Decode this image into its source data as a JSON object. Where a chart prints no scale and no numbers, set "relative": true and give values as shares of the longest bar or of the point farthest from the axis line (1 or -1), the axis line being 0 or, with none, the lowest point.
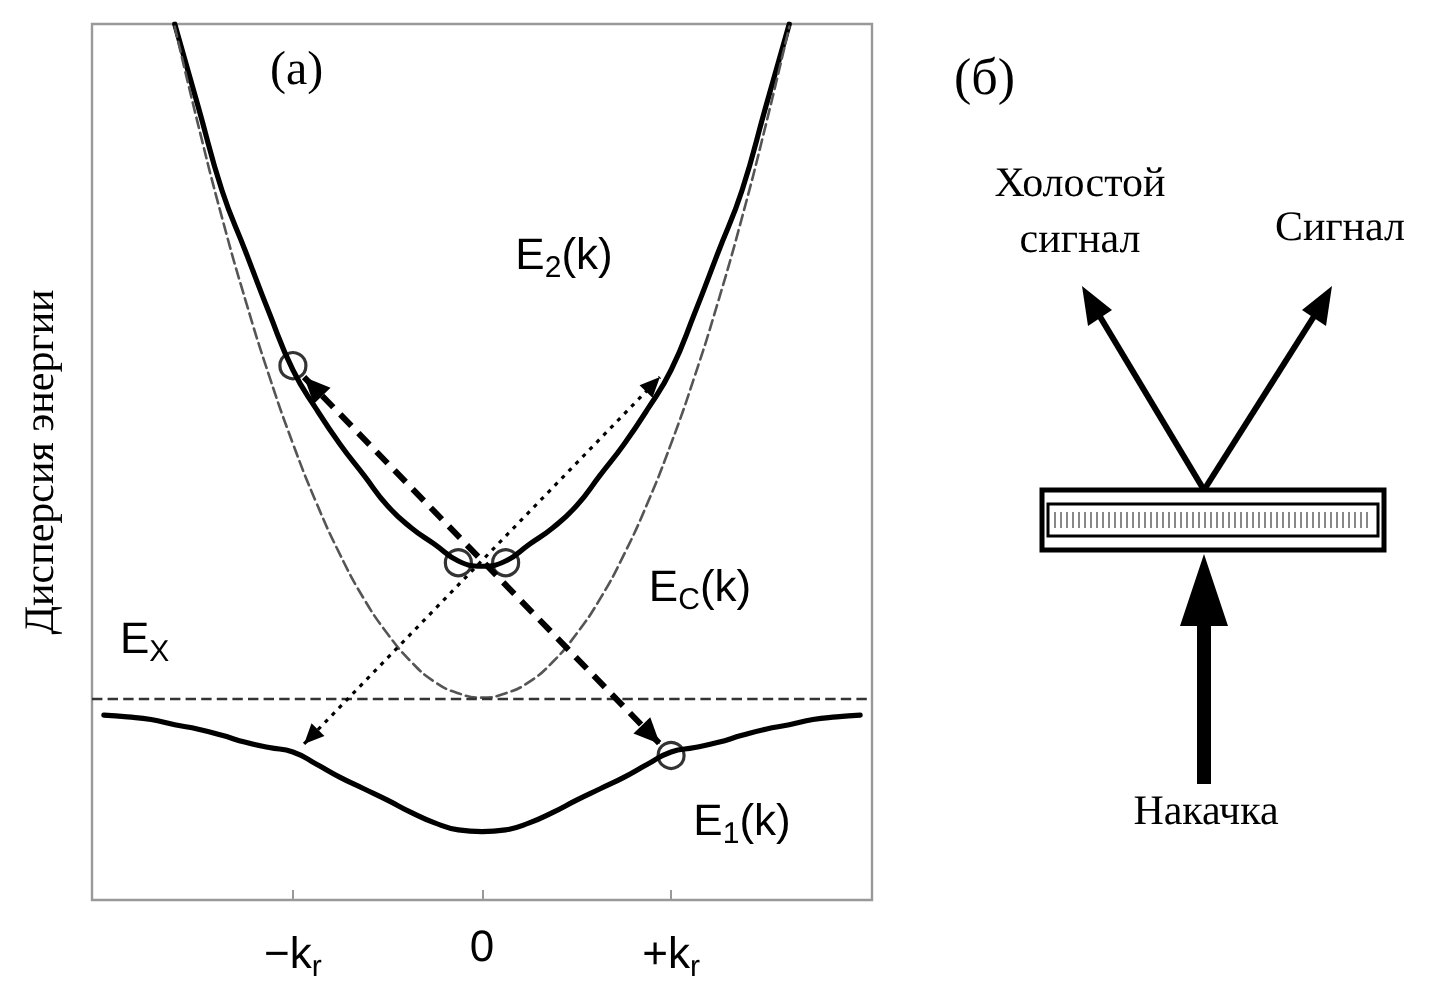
{
  "chart_data": [
    {
      "type": "line",
      "title": "(a)",
      "ylabel": "Дисперсия энергии",
      "relative": true,
      "categories": [
        null,
        null,
        null,
        null,
        null,
        null,
        null,
        null,
        "−k$_{r}$",
        null,
        null,
        null,
        null,
        null,
        null,
        null,
        "0",
        null,
        null,
        null,
        null,
        null,
        null,
        null,
        "+k$_{r}$",
        null,
        null,
        null,
        null,
        null,
        null,
        null,
        null
      ],
      "series": [
        {
          "type": "line",
          "color": "#000000",
          "line_style": "solid",
          "values": [
            null,
            null,
            null,
            1.0,
            0.905,
            0.81,
            0.74,
            0.67,
            0.605,
            0.56,
            0.52,
            0.485,
            0.45,
            0.425,
            0.406,
            0.387,
            0.381,
            0.387,
            0.406,
            0.425,
            0.45,
            0.485,
            0.52,
            0.56,
            0.605,
            0.67,
            0.74,
            0.81,
            0.905,
            1.0,
            null,
            null,
            null
          ]
        },
        {
          "type": "line",
          "color": "#000000",
          "line_style": "solid",
          "values": [
            0.211,
            0.209,
            0.206,
            0.2,
            0.195,
            0.188,
            0.18,
            0.174,
            0.169,
            0.155,
            0.14,
            0.127,
            0.114,
            0.1,
            0.088,
            0.08,
            0.078,
            0.08,
            0.088,
            0.1,
            0.114,
            0.127,
            0.14,
            0.155,
            0.169,
            0.174,
            0.18,
            0.188,
            0.195,
            0.2,
            0.206,
            0.209,
            0.211
          ]
        },
        {
          "type": "line",
          "color": "#555555",
          "line_style": "dashed",
          "values": [
            null,
            null,
            null,
            0.997,
            0.884,
            0.779,
            0.684,
            0.598,
            0.521,
            0.453,
            0.394,
            0.344,
            0.304,
            0.272,
            0.249,
            0.236,
            0.231,
            0.236,
            0.249,
            0.272,
            0.304,
            0.344,
            0.394,
            0.453,
            0.521,
            0.598,
            0.684,
            0.779,
            0.884,
            0.997,
            null,
            null,
            null
          ]
        },
        {
          "type": "scatter",
          "marker": "circle",
          "color": "#000000",
          "values": [
            null,
            null,
            null,
            null,
            null,
            null,
            null,
            null,
            0.61,
            null,
            null,
            null,
            null,
            null,
            null,
            0.385,
            null,
            0.385,
            null,
            null,
            null,
            null,
            null,
            null,
            0.165,
            null,
            null,
            null,
            null,
            null,
            null,
            null,
            null
          ]
        }
      ],
      "ref_lines": [
        {
          "axis": "y",
          "value": 0.231,
          "label": "E$_{X}$",
          "color": "#333333",
          "line_style": "dashed"
        }
      ],
      "annotations": [
        "E$_{2}$(k)",
        "E$_{C}$(k)",
        "E$_{1}$(k)"
      ]
    },
    {
      "type": "other",
      "title": "(б)",
      "annotations": [
        "Холостой сигнал",
        "Сигнал",
        "Накачка"
      ]
    }
  ]
}
